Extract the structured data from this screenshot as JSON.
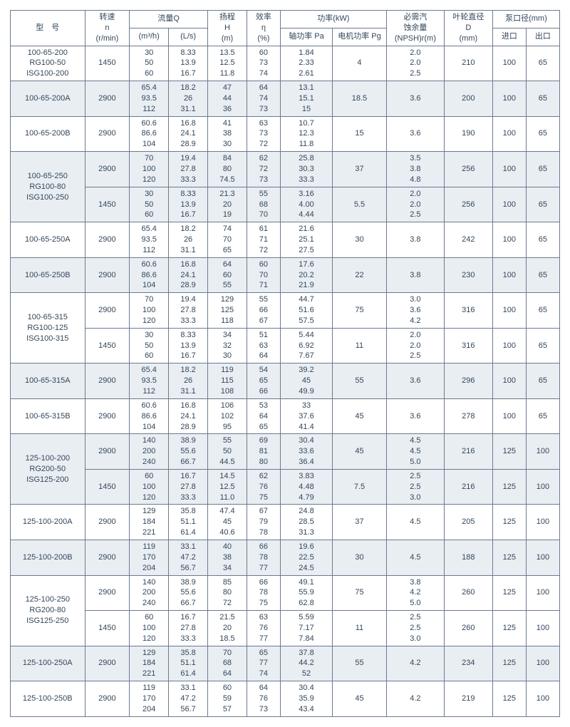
{
  "headers": {
    "model": "型　号",
    "speed": "转速\nn\n(r/min)",
    "flow": "流量Q",
    "flow_m3h": "(m³/h)",
    "flow_ls": "(L/s)",
    "head": "扬程\nH\n(m)",
    "eff": "效率\nη\n(%)",
    "power": "功率(kW)",
    "power_pa": "轴功率 Pa",
    "power_pg": "电机功率 Pg",
    "npsh": "必需汽\n蚀余量\n(NPSH)r(m)",
    "dia": "叶轮直径\nD\n(mm)",
    "port": "泵口径(mm)",
    "port_in": "进口",
    "port_out": "出口"
  },
  "band_colors": {
    "plain": "#ffffff",
    "alt": "#e9eef3"
  },
  "rows": [
    {
      "model": "100-65-200\nRG100-50\nISG100-200",
      "speed": "1450",
      "q1": "30\n50\n60",
      "q2": "8.33\n13.9\n16.7",
      "head": "13.5\n12.5\n11.8",
      "eff": "60\n73\n74",
      "pa": "1.84\n2.33\n2.61",
      "pg": "4",
      "npsh": "2.0\n2.0\n2.5",
      "dia": "210",
      "inp": "100",
      "out": "65",
      "alt": false
    },
    {
      "model": "100-65-200A",
      "speed": "2900",
      "q1": "65.4\n93.5\n112",
      "q2": "18.2\n26\n31.1",
      "head": "47\n44\n36",
      "eff": "64\n74\n73",
      "pa": "13.1\n15.1\n15",
      "pg": "18.5",
      "npsh": "3.6",
      "dia": "200",
      "inp": "100",
      "out": "65",
      "alt": true
    },
    {
      "model": "100-65-200B",
      "speed": "2900",
      "q1": "60.6\n86.6\n104",
      "q2": "16.8\n24.1\n28.9",
      "head": "41\n38\n30",
      "eff": "63\n73\n72",
      "pa": "10.7\n12.3\n11.8",
      "pg": "15",
      "npsh": "3.6",
      "dia": "190",
      "inp": "100",
      "out": "65",
      "alt": false
    },
    {
      "group": "100-65-250\nRG100-80\nISG100-250",
      "sub": [
        {
          "speed": "2900",
          "q1": "70\n100\n120",
          "q2": "19.4\n27.8\n33.3",
          "head": "84\n80\n74.5",
          "eff": "62\n72\n73",
          "pa": "25.8\n30.3\n33.3",
          "pg": "37",
          "npsh": "3.5\n3.8\n4.8",
          "dia": "256",
          "inp": "100",
          "out": "65"
        },
        {
          "speed": "1450",
          "q1": "30\n50\n60",
          "q2": "8.33\n13.9\n16.7",
          "head": "21.3\n20\n19",
          "eff": "55\n68\n70",
          "pa": "3.16\n4.00\n4.44",
          "pg": "5.5",
          "npsh": "2.0\n2.0\n2.5",
          "dia": "256",
          "inp": "100",
          "out": "65"
        }
      ],
      "alt": true
    },
    {
      "model": "100-65-250A",
      "speed": "2900",
      "q1": "65.4\n93.5\n112",
      "q2": "18.2\n26\n31.1",
      "head": "74\n70\n65",
      "eff": "61\n71\n72",
      "pa": "21.6\n25.1\n27.5",
      "pg": "30",
      "npsh": "3.8",
      "dia": "242",
      "inp": "100",
      "out": "65",
      "alt": false
    },
    {
      "model": "100-65-250B",
      "speed": "2900",
      "q1": "60.6\n86.6\n104",
      "q2": "16.8\n24.1\n28.9",
      "head": "64\n60\n55",
      "eff": "60\n70\n71",
      "pa": "17.6\n20.2\n21.9",
      "pg": "22",
      "npsh": "3.8",
      "dia": "230",
      "inp": "100",
      "out": "65",
      "alt": true
    },
    {
      "group": "100-65-315\nRG100-125\nISG100-315",
      "sub": [
        {
          "speed": "2900",
          "q1": "70\n100\n120",
          "q2": "19.4\n27.8\n33.3",
          "head": "129\n125\n118",
          "eff": "55\n66\n67",
          "pa": "44.7\n51.6\n57.5",
          "pg": "75",
          "npsh": "3.0\n3.6\n4.2",
          "dia": "316",
          "inp": "100",
          "out": "65"
        },
        {
          "speed": "1450",
          "q1": "30\n50\n60",
          "q2": "8.33\n13.9\n16.7",
          "head": "34\n32\n30",
          "eff": "51\n63\n64",
          "pa": "5.44\n6.92\n7.67",
          "pg": "11",
          "npsh": "2.0\n2.0\n2.5",
          "dia": "316",
          "inp": "100",
          "out": "65"
        }
      ],
      "alt": false
    },
    {
      "model": "100-65-315A",
      "speed": "2900",
      "q1": "65.4\n93.5\n112",
      "q2": "18.2\n26\n31.1",
      "head": "119\n115\n108",
      "eff": "54\n65\n66",
      "pa": "39.2\n45\n49.9",
      "pg": "55",
      "npsh": "3.6",
      "dia": "296",
      "inp": "100",
      "out": "65",
      "alt": true
    },
    {
      "model": "100-65-315B",
      "speed": "2900",
      "q1": "60.6\n86.6\n104",
      "q2": "16.8\n24.1\n28.9",
      "head": "106\n102\n95",
      "eff": "53\n64\n65",
      "pa": "33\n37.6\n41.4",
      "pg": "45",
      "npsh": "3.6",
      "dia": "278",
      "inp": "100",
      "out": "65",
      "alt": false
    },
    {
      "group": "125-100-200\nRG200-50\nISG125-200",
      "sub": [
        {
          "speed": "2900",
          "q1": "140\n200\n240",
          "q2": "38.9\n55.6\n66.7",
          "head": "55\n50\n44.5",
          "eff": "69\n81\n80",
          "pa": "30.4\n33.6\n36.4",
          "pg": "45",
          "npsh": "4.5\n4.5\n5.0",
          "dia": "216",
          "inp": "125",
          "out": "100"
        },
        {
          "speed": "1450",
          "q1": "60\n100\n120",
          "q2": "16.7\n27.8\n33.3",
          "head": "14.5\n12.5\n11.0",
          "eff": "62\n76\n75",
          "pa": "3.83\n4.48\n4.79",
          "pg": "7.5",
          "npsh": "2.5\n2.5\n3.0",
          "dia": "216",
          "inp": "125",
          "out": "100"
        }
      ],
      "alt": true
    },
    {
      "model": "125-100-200A",
      "speed": "2900",
      "q1": "129\n184\n221",
      "q2": "35.8\n51.1\n61.4",
      "head": "47.4\n45\n40.6",
      "eff": "67\n79\n78",
      "pa": "24.8\n28.5\n31.3",
      "pg": "37",
      "npsh": "4.5",
      "dia": "205",
      "inp": "125",
      "out": "100",
      "alt": false
    },
    {
      "model": "125-100-200B",
      "speed": "2900",
      "q1": "119\n170\n204",
      "q2": "33.1\n47.2\n56.7",
      "head": "40\n38\n34",
      "eff": "66\n78\n77",
      "pa": "19.6\n22.5\n24.5",
      "pg": "30",
      "npsh": "4.5",
      "dia": "188",
      "inp": "125",
      "out": "100",
      "alt": true
    },
    {
      "group": "125-100-250\nRG200-80\nISG125-250",
      "sub": [
        {
          "speed": "2900",
          "q1": "140\n200\n240",
          "q2": "38.9\n55.6\n66.7",
          "head": "85\n80\n72",
          "eff": "66\n78\n75",
          "pa": "49.1\n55.9\n62.8",
          "pg": "75",
          "npsh": "3.8\n4.2\n5.0",
          "dia": "260",
          "inp": "125",
          "out": "100"
        },
        {
          "speed": "1450",
          "q1": "60\n100\n120",
          "q2": "16.7\n27.8\n33.3",
          "head": "21.5\n20\n18.5",
          "eff": "63\n76\n77",
          "pa": "5.59\n7.17\n7.84",
          "pg": "11",
          "npsh": "2.5\n2.5\n3.0",
          "dia": "260",
          "inp": "125",
          "out": "100"
        }
      ],
      "alt": false
    },
    {
      "model": "125-100-250A",
      "speed": "2900",
      "q1": "129\n184\n221",
      "q2": "35.8\n51.1\n61.4",
      "head": "70\n68\n64",
      "eff": "65\n77\n74",
      "pa": "37.8\n44.2\n52",
      "pg": "55",
      "npsh": "4.2",
      "dia": "234",
      "inp": "125",
      "out": "100",
      "alt": true
    },
    {
      "model": "125-100-250B",
      "speed": "2900",
      "q1": "119\n170\n204",
      "q2": "33.1\n47.2\n56.7",
      "head": "60\n59\n57",
      "eff": "64\n76\n73",
      "pa": "30.4\n35.9\n43.4",
      "pg": "45",
      "npsh": "4.2",
      "dia": "219",
      "inp": "125",
      "out": "100",
      "alt": false
    }
  ]
}
